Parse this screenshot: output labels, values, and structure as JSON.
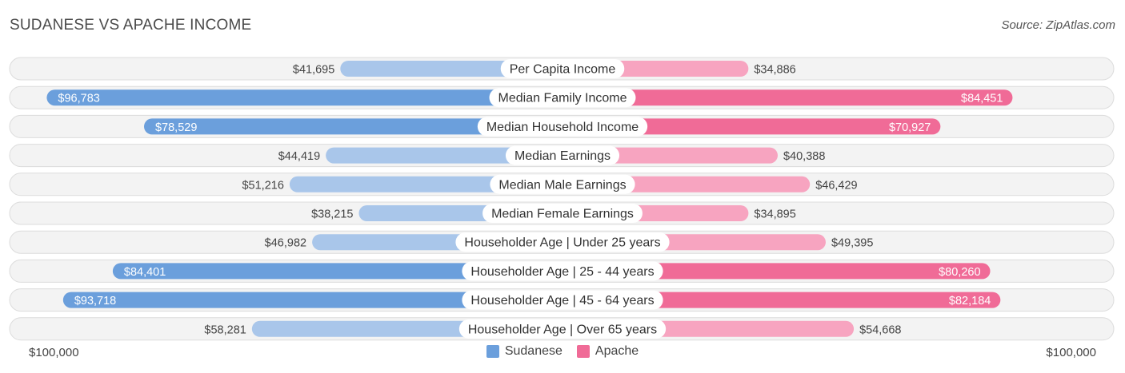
{
  "title": "SUDANESE VS APACHE INCOME",
  "source": "Source: ZipAtlas.com",
  "colors": {
    "sudanese_strong": "#6b9fdc",
    "sudanese_light": "#a9c6ea",
    "apache_strong": "#f06b97",
    "apache_light": "#f7a4c0",
    "row_bg": "#f0f0f0",
    "row_border": "#dcdcdc"
  },
  "axis": {
    "left_label": "$100,000",
    "right_label": "$100,000"
  },
  "legend": {
    "sudanese": "Sudanese",
    "apache": "Apache"
  },
  "chart_data": {
    "type": "bar",
    "orientation": "horizontal-diverging",
    "title": "SUDANESE VS APACHE INCOME",
    "xlim": [
      0,
      100000
    ],
    "categories": [
      "Per Capita Income",
      "Median Family Income",
      "Median Household Income",
      "Median Earnings",
      "Median Male Earnings",
      "Median Female Earnings",
      "Householder Age | Under 25 years",
      "Householder Age | 25 - 44 years",
      "Householder Age | 45 - 64 years",
      "Householder Age | Over 65 years"
    ],
    "series": [
      {
        "name": "Sudanese",
        "side": "left",
        "values": [
          41695,
          96783,
          78529,
          44419,
          51216,
          38215,
          46982,
          84401,
          93718,
          58281
        ],
        "labels": [
          "$41,695",
          "$96,783",
          "$78,529",
          "$44,419",
          "$51,216",
          "$38,215",
          "$46,982",
          "$84,401",
          "$93,718",
          "$58,281"
        ]
      },
      {
        "name": "Apache",
        "side": "right",
        "values": [
          34886,
          84451,
          70927,
          40388,
          46429,
          34895,
          49395,
          80260,
          82184,
          54668
        ],
        "labels": [
          "$34,886",
          "$84,451",
          "$70,927",
          "$40,388",
          "$46,429",
          "$34,895",
          "$49,395",
          "$80,260",
          "$82,184",
          "$54,668"
        ]
      }
    ],
    "legend_position": "bottom-center"
  }
}
